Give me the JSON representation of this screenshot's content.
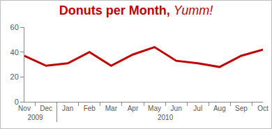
{
  "chart_data": {
    "type": "line",
    "title": "Donuts per Month, Yumm!",
    "categories": [
      "Nov",
      "Dec",
      "Jan",
      "Feb",
      "Mar",
      "Apr",
      "May",
      "Jun",
      "Jul",
      "Aug",
      "Sep",
      "Oct"
    ],
    "category_groups": [
      "2009",
      "2009",
      "2010",
      "2010",
      "2010",
      "2010",
      "2010",
      "2010",
      "2010",
      "2010",
      "2010",
      "2010"
    ],
    "values": [
      37,
      29,
      31,
      40,
      29,
      38,
      44,
      33,
      31,
      28,
      37,
      42
    ],
    "color": "#c00000",
    "ylim": [
      0,
      60
    ],
    "yticks": [
      0,
      20,
      40,
      60
    ],
    "grid": false
  }
}
